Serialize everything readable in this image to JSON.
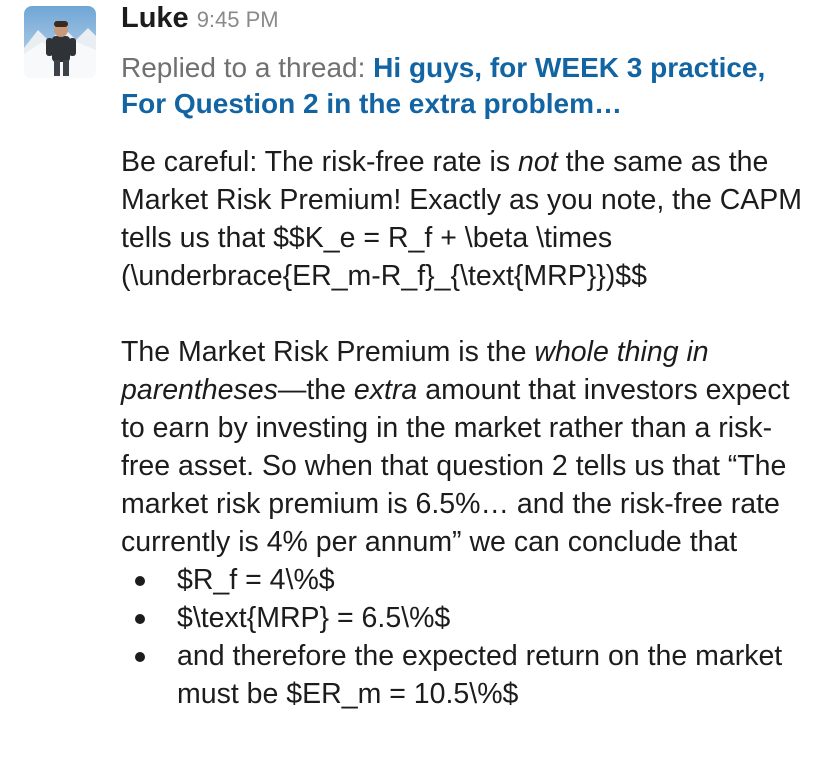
{
  "message": {
    "author": "Luke",
    "time": "9:45 PM",
    "reply_prefix": "Replied to a thread: ",
    "thread_title": "Hi guys, for WEEK 3 practice, For Question 2 in the extra problem…"
  },
  "body": {
    "p1_a": "Be careful: The risk-free rate is ",
    "p1_em": "not",
    "p1_b": " the same as the Market Risk Premium! Exactly as you note, the CAPM tells us that $$K_e = R_f + \\beta \\times (\\underbrace{ER_m-R_f}_{\\text{MRP}})$$",
    "p2_a": "The Market Risk Premium is the ",
    "p2_em1": "whole thing in parentheses",
    "p2_b": "—the ",
    "p2_em2": "extra",
    "p2_c": " amount that investors expect to earn by investing in the market rather than a risk-free asset. So when that question 2 tells us that “The market risk premium is 6.5%… and the risk-free rate currently is 4% per annum” we can conclude that",
    "bullets": [
      "$R_f = 4\\%$",
      "$\\text{MRP} = 6.5\\%$",
      "and therefore the expected return on the market must be $ER_m = 10.5\\%$"
    ]
  }
}
